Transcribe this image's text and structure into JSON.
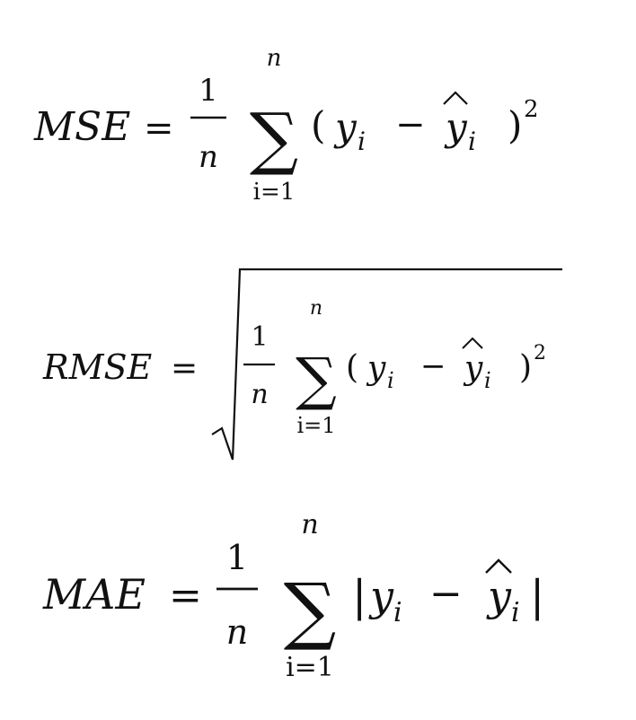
{
  "formulas": [
    {
      "name": "mse",
      "label": "MSE",
      "equals": "=",
      "frac_num": "1",
      "frac_den": "n",
      "sigma": "∑",
      "upper": "n",
      "lower": "i=1",
      "open": "(",
      "y": "y",
      "sub_i": "i",
      "minus": "−",
      "yhat": "y",
      "hat": "^",
      "close": ")",
      "sup": "2"
    },
    {
      "name": "rmse",
      "label": "RMSE",
      "equals": "=",
      "frac_num": "1",
      "frac_den": "n",
      "sigma": "∑",
      "upper": "n",
      "lower": "i=1",
      "open": "(",
      "y": "y",
      "sub_i": "i",
      "minus": "−",
      "yhat": "y",
      "hat": "^",
      "close": ")",
      "sup": "2"
    },
    {
      "name": "mae",
      "label": "MAE",
      "equals": "=",
      "frac_num": "1",
      "frac_den": "n",
      "sigma": "∑",
      "upper": "n",
      "lower": "i=1",
      "open": "|",
      "y": "y",
      "sub_i": "i",
      "minus": "−",
      "yhat": "y",
      "hat": "^",
      "close": "|"
    }
  ]
}
